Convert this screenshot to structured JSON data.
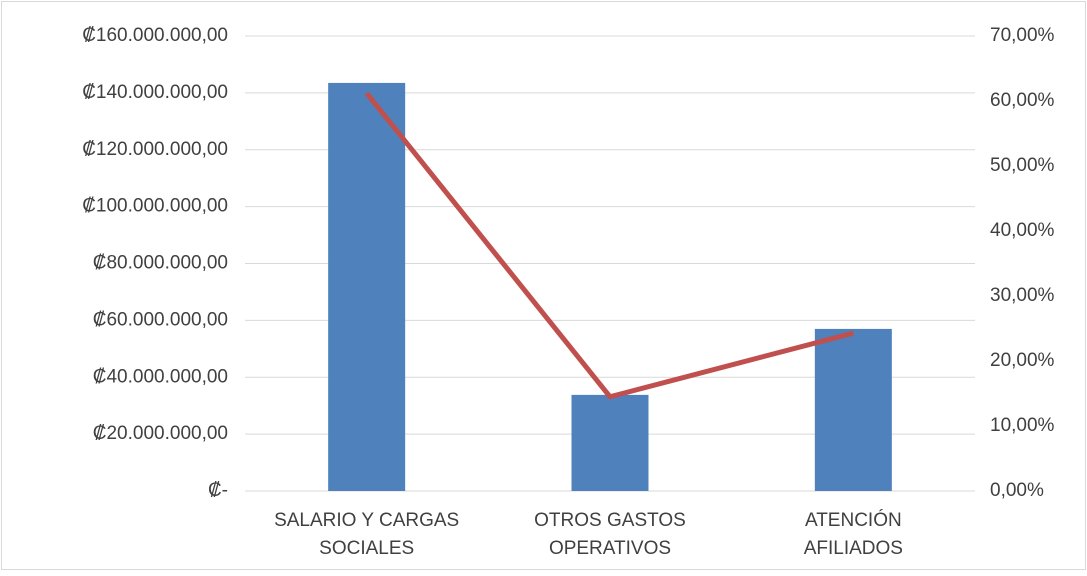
{
  "chart_data": {
    "type": "bar",
    "categories": [
      "SALARIO Y CARGAS SOCIALES",
      "OTROS GASTOS OPERATIVOS",
      "ATENCIÓN AFILIADOS"
    ],
    "series": [
      {
        "type": "bar",
        "color": "#4f81bd",
        "values": [
          143500000,
          33800000,
          57000000
        ]
      },
      {
        "type": "line",
        "color": "#c0504d",
        "axis": "y2",
        "values": [
          61.2,
          14.5,
          24.3
        ]
      }
    ],
    "ylim": [
      0,
      160000000
    ],
    "yticks": [
      {
        "value": 0,
        "label": "₡-"
      },
      {
        "value": 20000000,
        "label": "₡20.000.000,00"
      },
      {
        "value": 40000000,
        "label": "₡40.000.000,00"
      },
      {
        "value": 60000000,
        "label": "₡60.000.000,00"
      },
      {
        "value": 80000000,
        "label": "₡80.000.000,00"
      },
      {
        "value": 100000000,
        "label": "₡100.000.000,00"
      },
      {
        "value": 120000000,
        "label": "₡120.000.000,00"
      },
      {
        "value": 140000000,
        "label": "₡140.000.000,00"
      },
      {
        "value": 160000000,
        "label": "₡160.000.000,00"
      }
    ],
    "y2lim": [
      0,
      70
    ],
    "y2ticks": [
      {
        "value": 0,
        "label": "0,00%"
      },
      {
        "value": 10,
        "label": "10,00%"
      },
      {
        "value": 20,
        "label": "20,00%"
      },
      {
        "value": 30,
        "label": "30,00%"
      },
      {
        "value": 40,
        "label": "40,00%"
      },
      {
        "value": 50,
        "label": "50,00%"
      },
      {
        "value": 60,
        "label": "60,00%"
      },
      {
        "value": 70,
        "label": "70,00%"
      }
    ],
    "grid": true
  }
}
